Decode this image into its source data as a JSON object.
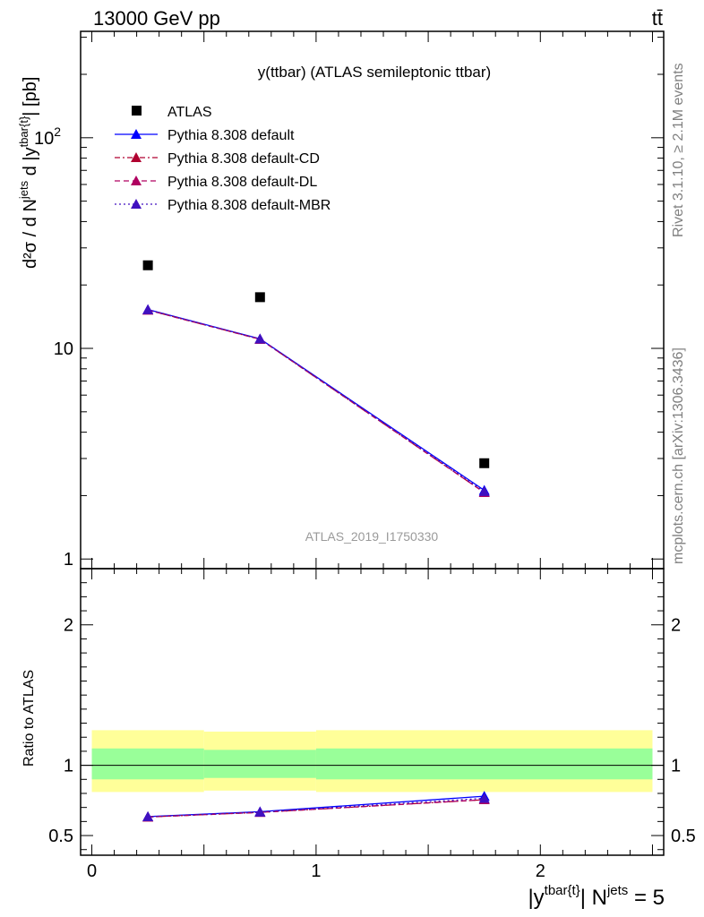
{
  "header": {
    "energy_label": "13000 GeV pp",
    "process_label": "tt̄"
  },
  "side_labels": {
    "rivet": "Rivet 3.1.10, ≥ 2.1M events",
    "mcplots": "mcplots.cern.ch [arXiv:1306.3436]"
  },
  "chart_data": [
    {
      "type": "scatter",
      "title": "y(ttbar) (ATLAS semileptonic ttbar)",
      "watermark": "ATLAS_2019_I1750330",
      "ylabel": {
        "main": "d²σ / d N",
        "sup1": "jets",
        "mid": " d |y",
        "sup2": "tbar{t}",
        "tail": "| [pb]"
      },
      "yscale": "log",
      "ylim": [
        0.9,
        320
      ],
      "xlim": [
        -0.05,
        2.55
      ],
      "ytick_labels": [
        {
          "value": 1,
          "label": "1"
        },
        {
          "value": 10,
          "label": "10"
        },
        {
          "value": 100,
          "label": "10",
          "sup": "2"
        }
      ],
      "legend_position": "top-left",
      "series": [
        {
          "name": "ATLAS",
          "color": "#000000",
          "marker": "square",
          "line": "none",
          "x": [
            0.25,
            0.75,
            1.75
          ],
          "y": [
            24.8,
            17.5,
            2.85
          ]
        },
        {
          "name": "Pythia 8.308 default",
          "color": "#0000ff",
          "marker": "triangle",
          "line": "solid",
          "x": [
            0.25,
            0.75,
            1.75
          ],
          "y": [
            15.3,
            11.1,
            2.12
          ]
        },
        {
          "name": "Pythia 8.308 default-CD",
          "color": "#b00030",
          "marker": "triangle",
          "line": "dashdot",
          "x": [
            0.25,
            0.75,
            1.75
          ],
          "y": [
            15.2,
            11.05,
            2.07
          ]
        },
        {
          "name": "Pythia 8.308 default-DL",
          "color": "#b00060",
          "marker": "triangle",
          "line": "dashed",
          "x": [
            0.25,
            0.75,
            1.75
          ],
          "y": [
            15.2,
            11.05,
            2.07
          ]
        },
        {
          "name": "Pythia 8.308 default-MBR",
          "color": "#4010c0",
          "marker": "triangle",
          "line": "dotted",
          "x": [
            0.25,
            0.75,
            1.75
          ],
          "y": [
            15.25,
            11.08,
            2.09
          ]
        }
      ]
    },
    {
      "type": "line",
      "ylabel": "Ratio to ATLAS",
      "xlabel": {
        "pre": "|y",
        "sup1": "tbar{t}",
        "mid": "| N",
        "sup2": "jets",
        "tail": " = 5"
      },
      "ylim": [
        0.36,
        2.4
      ],
      "xlim": [
        -0.05,
        2.55
      ],
      "xtick_labels": [
        {
          "value": 0,
          "label": "0"
        },
        {
          "value": 1,
          "label": "1"
        },
        {
          "value": 2,
          "label": "2"
        }
      ],
      "ytick_labels": [
        {
          "value": 0.5,
          "label": "0.5"
        },
        {
          "value": 1,
          "label": "1"
        },
        {
          "value": 2,
          "label": "2"
        }
      ],
      "bands": {
        "edges": [
          0,
          0.5,
          1.0,
          2.5
        ],
        "yellow_color": "#ffff99",
        "green_color": "#99ff99",
        "yellow": [
          [
            0.81,
            1.25
          ],
          [
            0.82,
            1.24
          ],
          [
            0.81,
            1.25
          ]
        ],
        "green": [
          [
            0.9,
            1.12
          ],
          [
            0.91,
            1.11
          ],
          [
            0.9,
            1.12
          ]
        ]
      },
      "series": [
        {
          "name": "Pythia 8.308 default",
          "color": "#0000ff",
          "line": "solid",
          "x": [
            0.25,
            0.75,
            1.75
          ],
          "y": [
            0.635,
            0.67,
            0.78
          ]
        },
        {
          "name": "Pythia 8.308 default-CD",
          "color": "#b00030",
          "line": "dashdot",
          "x": [
            0.25,
            0.75,
            1.75
          ],
          "y": [
            0.632,
            0.665,
            0.755
          ]
        },
        {
          "name": "Pythia 8.308 default-DL",
          "color": "#b00060",
          "line": "dashed",
          "x": [
            0.25,
            0.75,
            1.75
          ],
          "y": [
            0.632,
            0.665,
            0.755
          ]
        },
        {
          "name": "Pythia 8.308 default-MBR",
          "color": "#4010c0",
          "line": "dotted",
          "x": [
            0.25,
            0.75,
            1.75
          ],
          "y": [
            0.634,
            0.667,
            0.765
          ]
        }
      ]
    }
  ]
}
